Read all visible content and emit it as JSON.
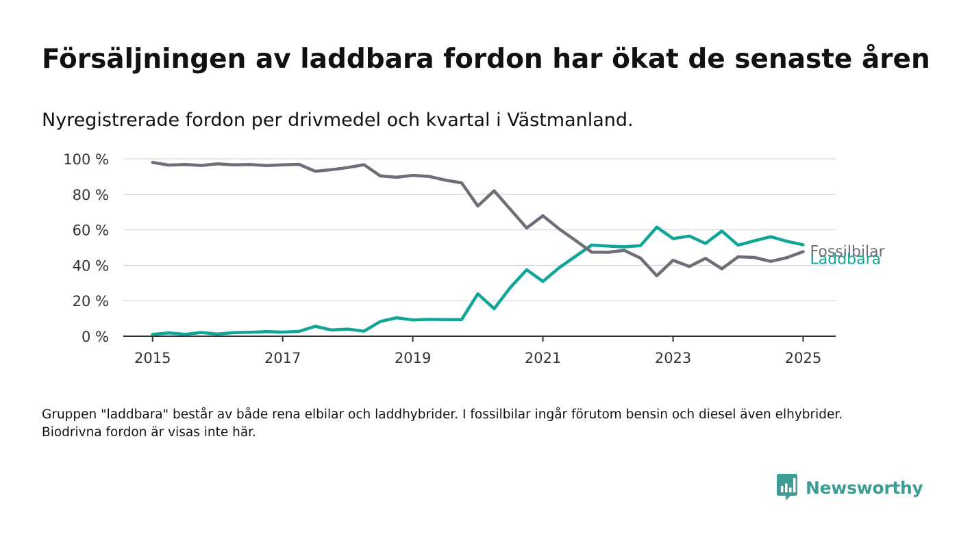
{
  "title": "Försäljningen av laddbara fordon har ökat de senaste åren",
  "subtitle": "Nyregistrerade fordon per drivmedel och kvartal i Västmanland.",
  "note": "Gruppen \"laddbara\" består av både rena elbilar och laddhybrider. I fossilbilar ingår förutom bensin och diesel även elhybrider. Biodrivna fordon är visas inte här.",
  "brand": {
    "name": "Newsworthy",
    "icon": "newsworthy-logo-icon",
    "color": "#3d9c94"
  },
  "chart_data": {
    "type": "line",
    "x_start": 2015,
    "x_step": 0.25,
    "xlim": [
      2014.55,
      2025.5
    ],
    "ylim": [
      0,
      100
    ],
    "x_ticks": [
      2015,
      2017,
      2019,
      2021,
      2023,
      2025
    ],
    "x_tick_labels": [
      "2015",
      "2017",
      "2019",
      "2021",
      "2023",
      "2025"
    ],
    "y_ticks": [
      0,
      20,
      40,
      60,
      80,
      100
    ],
    "y_tick_labels": [
      "0 %",
      "20 %",
      "40 %",
      "60 %",
      "80 %",
      "100 %"
    ],
    "grid": "horizontal",
    "series": [
      {
        "name": "Fossilbilar",
        "color": "#6e6e78",
        "values": [
          98,
          96.5,
          96.8,
          96.3,
          97.2,
          96.6,
          96.8,
          96.2,
          96.6,
          96.9,
          93,
          93.9,
          95.1,
          96.7,
          90.4,
          89.6,
          90.7,
          90.1,
          88,
          86.5,
          73.4,
          82,
          71.5,
          61,
          67.9,
          60.5,
          54,
          47.4,
          47.3,
          48.4,
          44,
          34.1,
          42.8,
          39.3,
          43.9,
          38,
          44.8,
          44.4,
          42.2,
          44.3,
          47.7
        ]
      },
      {
        "name": "Laddbara",
        "color": "#10a597",
        "values": [
          1,
          1.9,
          1.1,
          2.1,
          1.2,
          2,
          2.2,
          2.6,
          2.3,
          2.7,
          5.6,
          3.5,
          4,
          2.8,
          8.3,
          10.4,
          9.2,
          9.5,
          9.4,
          9.4,
          23.9,
          15.5,
          27.5,
          37.5,
          30.9,
          38.6,
          45,
          51.4,
          50.8,
          50.4,
          51.1,
          61.5,
          55,
          56.5,
          52.3,
          59.3,
          51.3,
          53.8,
          56.1,
          53.5,
          51.6
        ]
      }
    ]
  }
}
